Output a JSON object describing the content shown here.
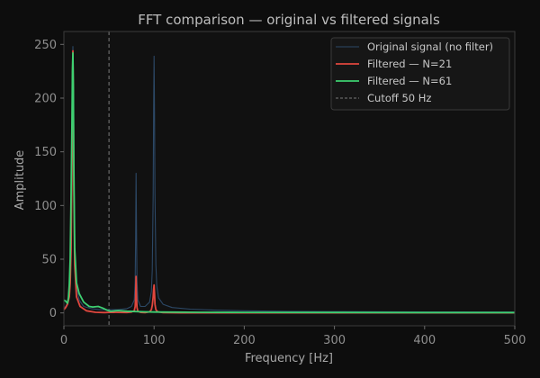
{
  "colors": {
    "background": "#0d0d0d",
    "plot_background": "#111111",
    "axis": "#3a3a3a",
    "original": "#2c4866",
    "n21": "#e0473e",
    "n61": "#3ecf71",
    "cutoff": "#7a7a7a"
  },
  "chart_data": {
    "type": "line",
    "title": "FFT comparison — original vs filtered signals",
    "xlabel": "Frequency [Hz]",
    "ylabel": "Amplitude",
    "xlim": [
      0,
      500
    ],
    "ylim": [
      -12,
      262
    ],
    "xticks": [
      0,
      100,
      200,
      300,
      400,
      500
    ],
    "yticks": [
      0,
      50,
      100,
      150,
      200,
      250
    ],
    "grid": false,
    "legend_position": "top-right",
    "series": [
      {
        "name": "Original signal (no filter)",
        "color_key": "original",
        "x": [
          0,
          2,
          4,
          6,
          7,
          8,
          9,
          9.5,
          10,
          10.5,
          11,
          12,
          14,
          17,
          22,
          30,
          40,
          50,
          60,
          70,
          75,
          78,
          79,
          79.5,
          80,
          80.5,
          81,
          82,
          85,
          90,
          95,
          97,
          98,
          99,
          99.5,
          100,
          100.5,
          101,
          102,
          103,
          105,
          110,
          120,
          140,
          170,
          200,
          250,
          300,
          400,
          500
        ],
        "y": [
          5,
          6,
          10,
          20,
          35,
          70,
          150,
          220,
          248,
          215,
          140,
          60,
          25,
          12,
          6,
          4,
          3,
          3,
          3,
          4,
          6,
          12,
          30,
          70,
          130,
          75,
          30,
          12,
          6,
          6,
          10,
          20,
          40,
          110,
          190,
          239,
          185,
          110,
          45,
          25,
          14,
          8,
          5,
          3.5,
          2.5,
          2,
          1.5,
          1.2,
          1,
          0.8
        ]
      },
      {
        "name": "Filtered — N=21",
        "color_key": "n21",
        "x": [
          0,
          2,
          4,
          6,
          7,
          8,
          9,
          9.5,
          10,
          10.5,
          11,
          12,
          14,
          18,
          25,
          35,
          45,
          50,
          55,
          60,
          70,
          75,
          78,
          79,
          79.5,
          80,
          80.5,
          81,
          82,
          85,
          90,
          95,
          97,
          98,
          99,
          99.5,
          100,
          100.5,
          101,
          102,
          104,
          110,
          130,
          200,
          300,
          500
        ],
        "y": [
          3,
          5,
          8,
          15,
          28,
          60,
          140,
          210,
          244,
          200,
          120,
          45,
          15,
          6,
          2,
          0.6,
          0.3,
          0.5,
          0.6,
          0.5,
          0.4,
          0.8,
          2,
          6,
          15,
          34,
          15,
          5,
          1.5,
          0.5,
          0.3,
          1,
          3,
          7,
          15,
          22,
          26,
          18,
          8,
          3,
          1,
          0.3,
          0.1,
          0.1,
          0.1,
          0.1
        ]
      },
      {
        "name": "Filtered — N=61",
        "color_key": "n61",
        "x": [
          0,
          2,
          4,
          5,
          6,
          7,
          8,
          9,
          9.5,
          10,
          10.5,
          11,
          12,
          14,
          17,
          22,
          28,
          32,
          38,
          43,
          48,
          52,
          56,
          60,
          70,
          80,
          90,
          100,
          150,
          200,
          300,
          400,
          500
        ],
        "y": [
          12,
          11,
          9,
          14,
          26,
          50,
          110,
          180,
          225,
          242,
          210,
          140,
          60,
          28,
          18,
          10,
          6,
          5.5,
          6,
          4.5,
          2.5,
          1.5,
          1.8,
          2.2,
          1.6,
          1.2,
          1,
          0.8,
          0.6,
          0.5,
          0.4,
          0.3,
          0.3
        ]
      }
    ],
    "reference_lines": [
      {
        "name": "Cutoff 50 Hz",
        "x": 50,
        "color_key": "cutoff",
        "style": "dashed"
      }
    ]
  }
}
